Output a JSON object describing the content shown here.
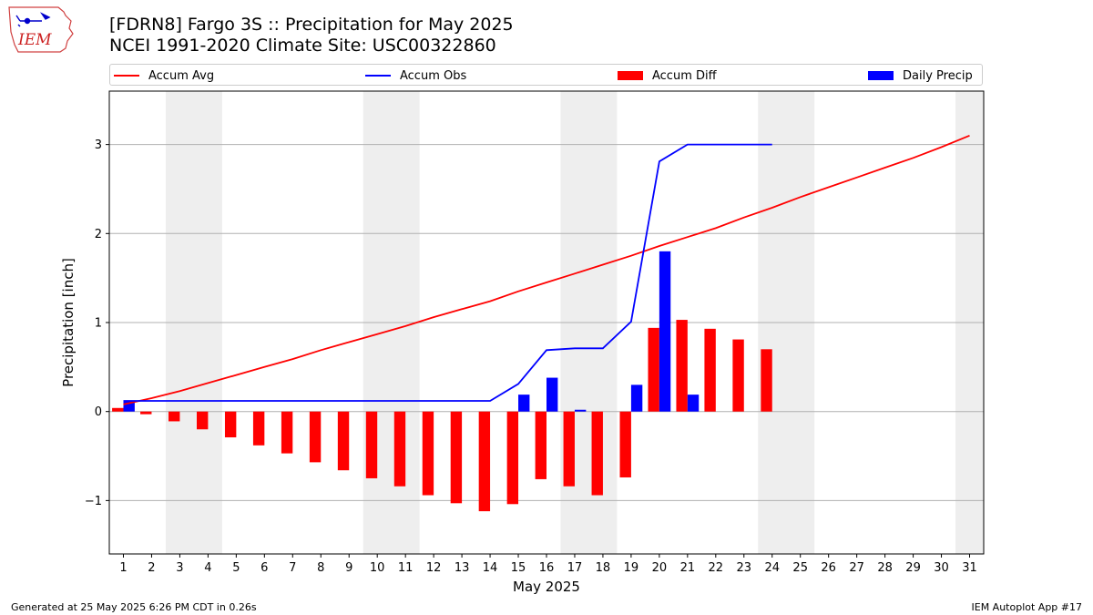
{
  "header": {
    "title_line1": "[FDRN8] Fargo 3S :: Precipitation for May 2025",
    "title_line2": "NCEI 1991-2020 Climate Site: USC00322860"
  },
  "logo": {
    "text": "IEM",
    "icon": "iem-iowa-logo"
  },
  "legend": {
    "items": [
      {
        "label": "Accum Avg",
        "kind": "line",
        "color": "#ff0000"
      },
      {
        "label": "Accum Obs",
        "kind": "line",
        "color": "#0000ff"
      },
      {
        "label": "Accum Diff",
        "kind": "bar",
        "color": "#ff0000"
      },
      {
        "label": "Daily Precip",
        "kind": "bar",
        "color": "#0000ff"
      }
    ],
    "placement": "top"
  },
  "footer": {
    "left": "Generated at 25 May 2025 6:26 PM CDT in 0.26s",
    "right": "IEM Autoplot App #17"
  },
  "chart_data": {
    "type": "bar",
    "title": "[FDRN8] Fargo 3S :: Precipitation for May 2025",
    "subtitle": "NCEI 1991-2020 Climate Site: USC00322860",
    "xlabel": "May 2025",
    "ylabel": "Precipitation [inch]",
    "x": [
      1,
      2,
      3,
      4,
      5,
      6,
      7,
      8,
      9,
      10,
      11,
      12,
      13,
      14,
      15,
      16,
      17,
      18,
      19,
      20,
      21,
      22,
      23,
      24,
      25,
      26,
      27,
      28,
      29,
      30,
      31
    ],
    "xlim": [
      0.5,
      31.5
    ],
    "ylim": [
      -1.6,
      3.6
    ],
    "yticks": [
      -1,
      0,
      1,
      2,
      3
    ],
    "ytick_labels": [
      "−1",
      "0",
      "1",
      "2",
      "3"
    ],
    "grid": "horizontal",
    "weekend_shading": [
      [
        3,
        4
      ],
      [
        10,
        11
      ],
      [
        17,
        18
      ],
      [
        24,
        25
      ],
      [
        31,
        31
      ]
    ],
    "weekend_color": "#eeeeee",
    "series": [
      {
        "name": "Accum Avg",
        "kind": "line",
        "color": "#ff0000",
        "x": [
          1,
          2,
          3,
          4,
          5,
          6,
          7,
          8,
          9,
          10,
          11,
          12,
          13,
          14,
          15,
          16,
          17,
          18,
          19,
          20,
          21,
          22,
          23,
          24,
          25,
          26,
          27,
          28,
          29,
          30,
          31
        ],
        "values": [
          0.08,
          0.15,
          0.23,
          0.32,
          0.41,
          0.5,
          0.59,
          0.69,
          0.78,
          0.87,
          0.96,
          1.06,
          1.15,
          1.24,
          1.35,
          1.45,
          1.55,
          1.65,
          1.75,
          1.86,
          1.96,
          2.06,
          2.18,
          2.29,
          2.41,
          2.52,
          2.63,
          2.74,
          2.85,
          2.97,
          3.1
        ]
      },
      {
        "name": "Accum Obs",
        "kind": "line",
        "color": "#0000ff",
        "x": [
          1,
          2,
          3,
          4,
          5,
          6,
          7,
          8,
          9,
          10,
          11,
          12,
          13,
          14,
          15,
          16,
          17,
          18,
          19,
          20,
          21,
          22,
          23,
          24
        ],
        "values": [
          0.12,
          0.12,
          0.12,
          0.12,
          0.12,
          0.12,
          0.12,
          0.12,
          0.12,
          0.12,
          0.12,
          0.12,
          0.12,
          0.12,
          0.31,
          0.69,
          0.71,
          0.71,
          1.01,
          2.81,
          3.0,
          3.0,
          3.0,
          3.0
        ]
      },
      {
        "name": "Accum Diff",
        "kind": "bar",
        "color": "#ff0000",
        "offset": -0.2,
        "x": [
          1,
          2,
          3,
          4,
          5,
          6,
          7,
          8,
          9,
          10,
          11,
          12,
          13,
          14,
          15,
          16,
          17,
          18,
          19,
          20,
          21,
          22,
          23,
          24
        ],
        "values": [
          0.04,
          -0.03,
          -0.11,
          -0.2,
          -0.29,
          -0.38,
          -0.47,
          -0.57,
          -0.66,
          -0.75,
          -0.84,
          -0.94,
          -1.03,
          -1.12,
          -1.04,
          -0.76,
          -0.84,
          -0.94,
          -0.74,
          0.94,
          1.03,
          0.93,
          0.81,
          0.7
        ]
      },
      {
        "name": "Daily Precip",
        "kind": "bar",
        "color": "#0000ff",
        "offset": 0.2,
        "x": [
          1,
          15,
          16,
          17,
          19,
          20,
          21
        ],
        "values": [
          0.12,
          0.19,
          0.38,
          0.02,
          0.3,
          1.8,
          0.19
        ]
      }
    ]
  }
}
